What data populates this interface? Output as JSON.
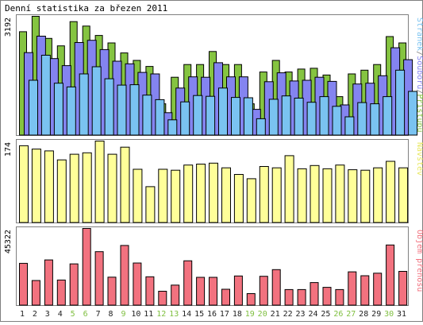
{
  "colors": {
    "frame": "#7f7f7f",
    "background": "#ffffff",
    "hits": "#85c441",
    "files": "#8484f0",
    "pages": "#7ac3f1",
    "visits": "#ffff99",
    "kbytes": "#f2727f",
    "weekday_label": "#222222",
    "weekend_label": "#7fbf3f"
  },
  "chart_data": [
    {
      "type": "bar",
      "id": "requests-panel",
      "title": "Denní statistika za březen 2011",
      "ymax_label": "3192",
      "ylim": [
        0,
        3192
      ],
      "legend_parts": [
        {
          "text": "Stránek",
          "color": "#7ac3f1"
        },
        {
          "text": "/",
          "color": "#7f7f7f"
        },
        {
          "text": "Souborů",
          "color": "#8484f0"
        },
        {
          "text": "/",
          "color": "#7f7f7f"
        },
        {
          "text": "Přístupů",
          "color": "#85c441"
        }
      ],
      "categories": [
        "1",
        "2",
        "3",
        "4",
        "5",
        "6",
        "7",
        "8",
        "9",
        "10",
        "11",
        "12",
        "13",
        "14",
        "15",
        "16",
        "17",
        "18",
        "19",
        "20",
        "21",
        "22",
        "23",
        "24",
        "25",
        "26",
        "27",
        "28",
        "29",
        "30",
        "31"
      ],
      "weekend": [
        false,
        false,
        false,
        false,
        true,
        true,
        false,
        false,
        true,
        false,
        false,
        true,
        true,
        false,
        false,
        false,
        false,
        false,
        true,
        true,
        false,
        false,
        false,
        false,
        false,
        true,
        true,
        false,
        false,
        true,
        false
      ],
      "series": [
        {
          "name": "Přístupů",
          "values": [
            2780,
            3192,
            2600,
            2400,
            3050,
            2930,
            2680,
            2480,
            2210,
            2010,
            1850,
            850,
            1560,
            1900,
            1900,
            2250,
            1900,
            1900,
            850,
            1700,
            2010,
            1700,
            1780,
            1800,
            1620,
            1040,
            1650,
            1750,
            1900,
            2650,
            2480
          ]
        },
        {
          "name": "Souborů",
          "values": [
            2220,
            2660,
            2060,
            1870,
            2490,
            2550,
            2300,
            1990,
            1920,
            1690,
            1650,
            610,
            1270,
            1570,
            1560,
            1950,
            1570,
            1570,
            700,
            1440,
            1680,
            1460,
            1480,
            1560,
            1450,
            820,
            1380,
            1400,
            1600,
            2350,
            2030
          ]
        },
        {
          "name": "Stránek",
          "values": [
            1480,
            2150,
            1400,
            1300,
            1650,
            1840,
            1520,
            1350,
            1360,
            1080,
            960,
            420,
            900,
            1070,
            1050,
            1270,
            1020,
            1010,
            450,
            970,
            1060,
            1000,
            890,
            1040,
            780,
            500,
            880,
            850,
            1040,
            1750,
            1180
          ]
        }
      ]
    },
    {
      "type": "bar",
      "id": "visits-panel",
      "ymax_label": "174",
      "ylim": [
        0,
        174
      ],
      "legend_parts": [
        {
          "text": "Návštěv",
          "color": "#e8e860"
        }
      ],
      "series": [
        {
          "name": "Návštěv",
          "values": [
            164,
            157,
            153,
            134,
            146,
            149,
            174,
            146,
            161,
            114,
            77,
            114,
            112,
            123,
            125,
            127,
            117,
            103,
            94,
            120,
            117,
            143,
            115,
            122,
            115,
            123,
            113,
            112,
            117,
            131,
            117
          ]
        }
      ]
    },
    {
      "type": "bar",
      "id": "kbytes-panel",
      "ymax_label": "45322",
      "ylim": [
        0,
        45322
      ],
      "legend_parts": [
        {
          "text": "Objem přenosu",
          "color": "#f2727f"
        }
      ],
      "series": [
        {
          "name": "Objem přenosu",
          "values": [
            24800,
            14700,
            26800,
            15000,
            24500,
            45322,
            31700,
            16700,
            35300,
            25000,
            16900,
            8400,
            12000,
            26300,
            16600,
            16600,
            9600,
            17400,
            7000,
            17200,
            21100,
            9400,
            9400,
            13500,
            10700,
            9400,
            19800,
            17500,
            19000,
            35600,
            20100
          ]
        }
      ]
    }
  ]
}
